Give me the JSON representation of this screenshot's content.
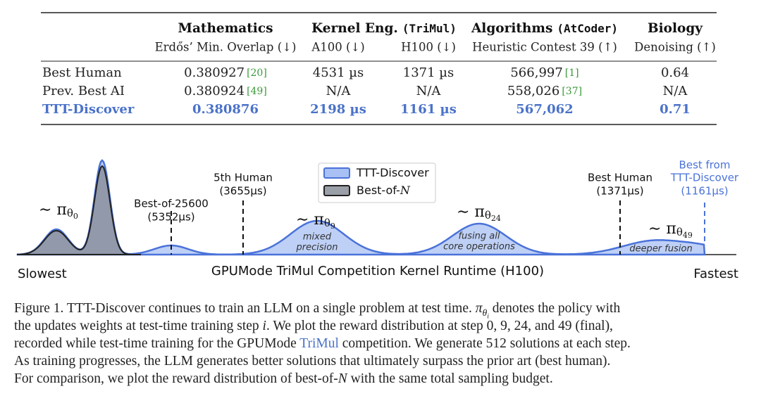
{
  "table": {
    "groups": [
      {
        "name": "Mathematics",
        "subs": [
          "Erdős’ Min. Overlap (↓)"
        ]
      },
      {
        "name": "Kernel Eng.",
        "tag": "(TriMul)",
        "subs": [
          "A100 (↓)",
          "H100 (↓)"
        ]
      },
      {
        "name": "Algorithms",
        "tag": "(AtCoder)",
        "subs": [
          "Heuristic Contest 39 (↑)"
        ]
      },
      {
        "name": "Biology",
        "subs": [
          "Denoising (↑)"
        ]
      }
    ],
    "rows": [
      {
        "label": "Best Human",
        "cells": [
          {
            "text": "0.380927",
            "ref": "[20]"
          },
          {
            "text": "4531 µs"
          },
          {
            "text": "1371 µs"
          },
          {
            "text": "566,997",
            "ref": "[1]"
          },
          {
            "text": "0.64"
          }
        ]
      },
      {
        "label": "Prev. Best AI",
        "cells": [
          {
            "text": "0.380924",
            "ref": "[49]"
          },
          {
            "text": "N/A"
          },
          {
            "text": "N/A"
          },
          {
            "text": "558,026",
            "ref": "[37]"
          },
          {
            "text": "N/A"
          }
        ]
      },
      {
        "label": "TTT-Discover",
        "cells": [
          {
            "text": "0.380876"
          },
          {
            "text": "2198 µs"
          },
          {
            "text": "1161 µs"
          },
          {
            "text": "567,062"
          },
          {
            "text": "0.71"
          }
        ]
      }
    ]
  },
  "figure": {
    "legend": [
      {
        "name": "TTT-Discover"
      },
      {
        "name": "Best-of-",
        "var": "N"
      }
    ],
    "policies": [
      {
        "pi": "∼ π",
        "theta": "θ",
        "step": "0"
      },
      {
        "pi": "∼ π",
        "theta": "θ",
        "step": "9"
      },
      {
        "pi": "∼ π",
        "theta": "θ",
        "step": "24"
      },
      {
        "pi": "∼ π",
        "theta": "θ",
        "step": "49"
      }
    ],
    "markers": [
      [
        "Best-of-25600",
        "(5352µs)"
      ],
      [
        "5th Human",
        "(3655µs)"
      ],
      [
        "Best Human",
        "(1371µs)"
      ],
      [
        "Best from",
        "TTT-Discover",
        "(1161µs)"
      ]
    ],
    "notes": [
      [
        "mixed",
        "precision"
      ],
      [
        "fusing all",
        "core operations"
      ],
      [
        "deeper fusion"
      ]
    ],
    "axis": {
      "left": "Slowest",
      "title": "GPUMode TriMul Competition Kernel Runtime (H100)",
      "right": "Fastest"
    }
  },
  "caption": {
    "lines": [
      [
        {
          "t": "Figure 1. TTT-Discover continues to train an LLM on a single problem at test time. "
        },
        {
          "math": "π",
          "sub": "θ",
          "subsub": "i"
        },
        {
          "t": " denotes the policy with"
        }
      ],
      [
        {
          "t": "the updates weights at test-time training step "
        },
        {
          "i": "i"
        },
        {
          "t": ". We plot the reward distribution at step 0, 9, 24,  and 49 (final),"
        }
      ],
      [
        {
          "t": "recorded while test-time training for the GPUMode "
        },
        {
          "link": "TriMul"
        },
        {
          "t": " competition. We generate 512 solutions at each step."
        }
      ],
      [
        {
          "t": "As training progresses, the LLM generates better solutions that ultimately surpass the prior art (best human)."
        }
      ],
      [
        {
          "t": "For comparison, we plot the reward distribution of best-of-"
        },
        {
          "i": "N"
        },
        {
          "t": " with the same total sampling budget."
        }
      ]
    ]
  }
}
